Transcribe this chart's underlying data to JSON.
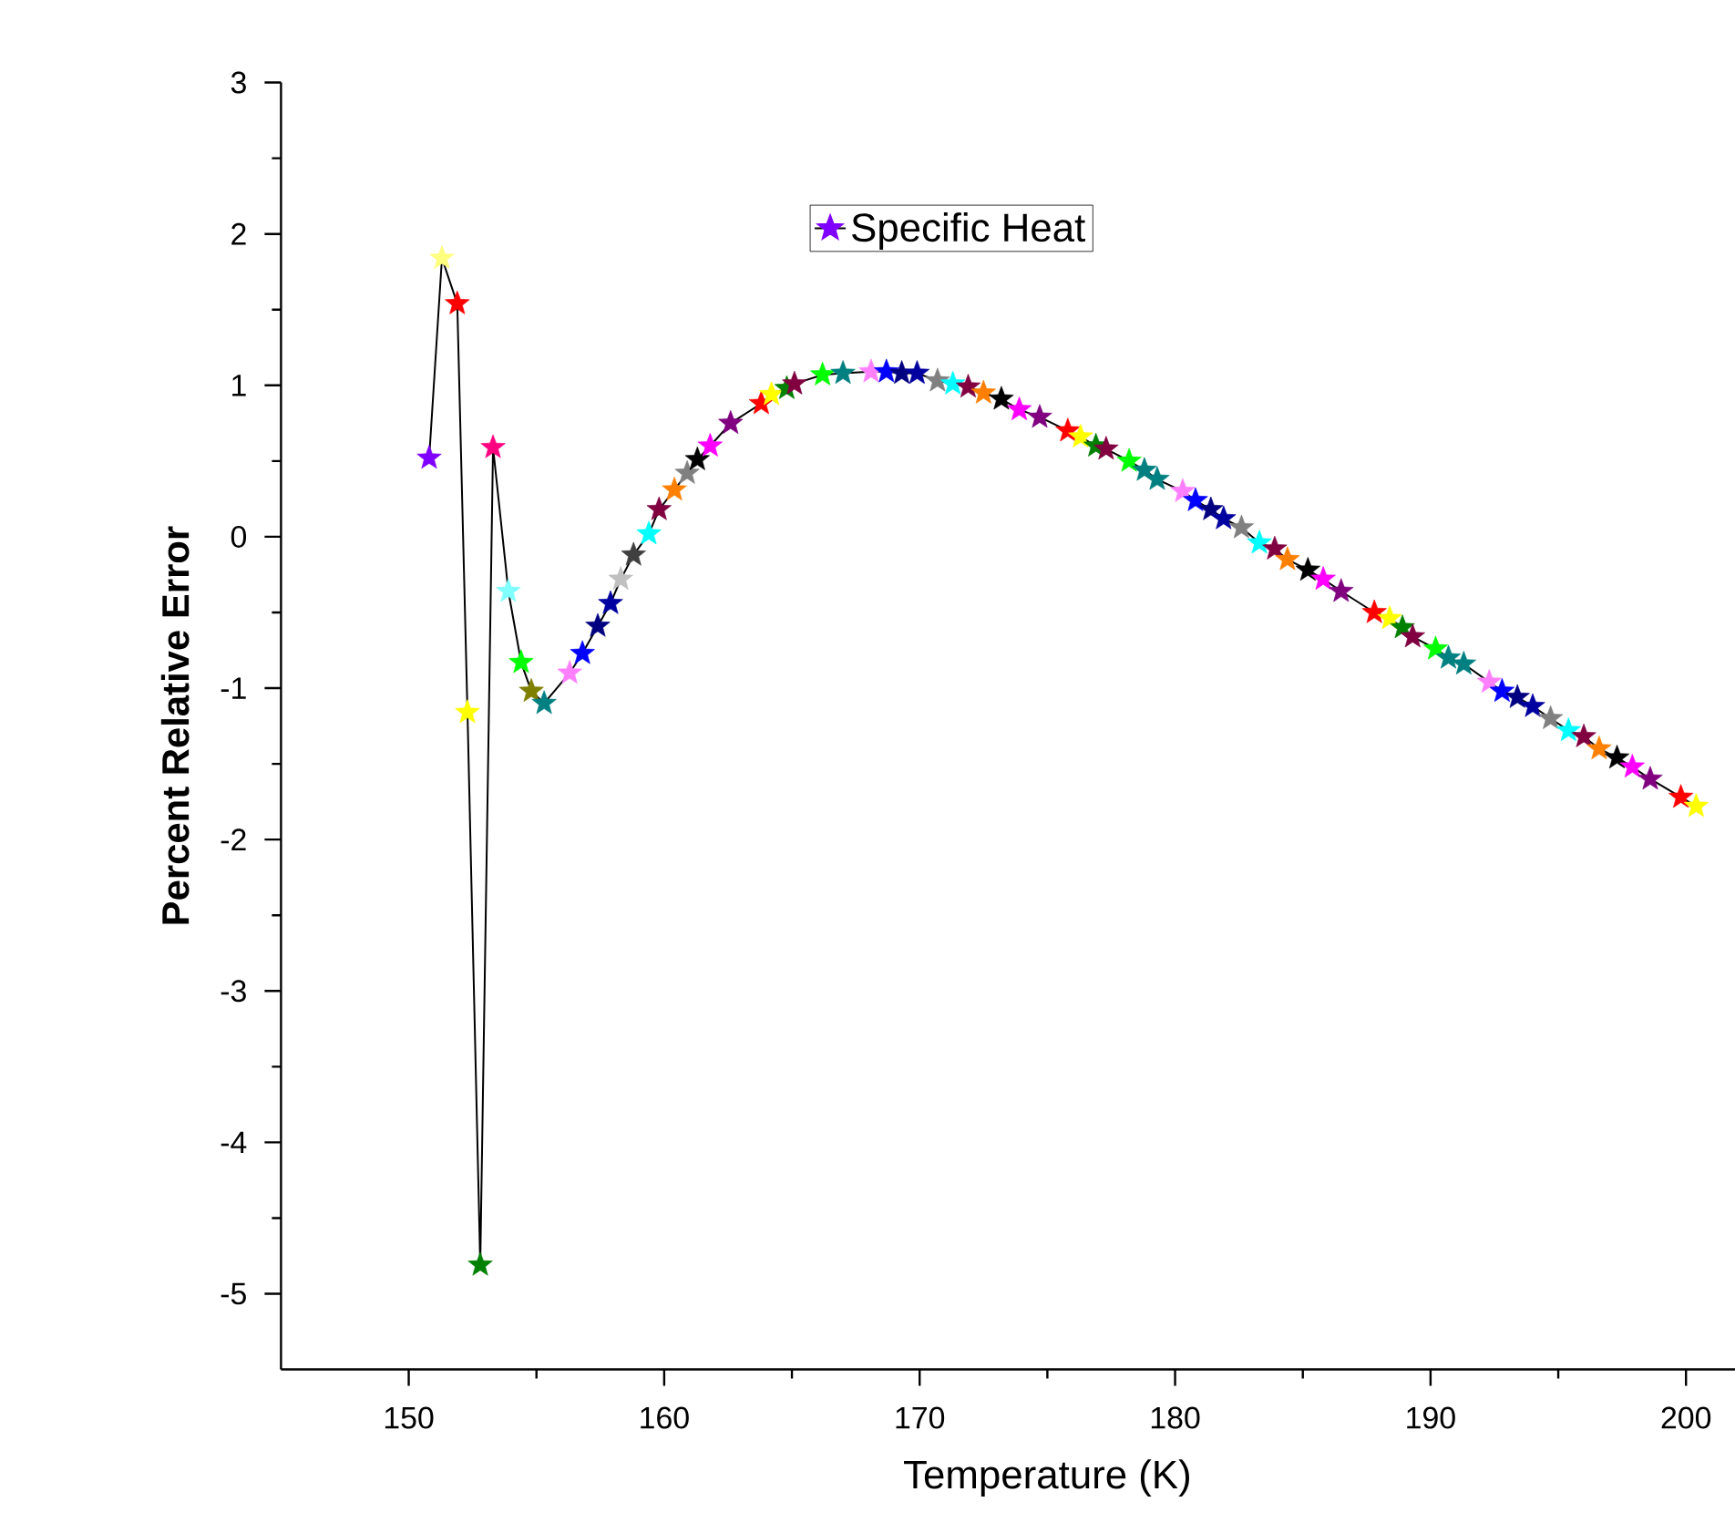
{
  "chart_data": {
    "type": "line",
    "xlabel": "Temperature (K)",
    "ylabel": "Percent Relative Error",
    "xlim": [
      145,
      205
    ],
    "ylim": [
      -5.5,
      3
    ],
    "xticks": [
      150,
      160,
      170,
      180,
      190,
      200
    ],
    "yticks": [
      -5,
      -4,
      -3,
      -2,
      -1,
      0,
      1,
      2,
      3
    ],
    "marker": "star",
    "line_style": "solid",
    "legend": "top",
    "series": [
      {
        "name": "Specific Heat",
        "color": "#000000",
        "x": [
          150.8,
          151.3,
          151.9,
          152.3,
          152.8,
          153.3,
          153.9,
          154.4,
          154.8,
          155.3,
          156.3,
          156.8,
          157.4,
          157.9,
          158.3,
          158.8,
          159.4,
          159.8,
          160.4,
          160.9,
          161.3,
          161.8,
          162.6,
          163.8,
          164.2,
          164.8,
          165.1,
          166.2,
          167.0,
          168.1,
          168.7,
          169.3,
          169.9,
          170.7,
          171.3,
          171.9,
          172.5,
          173.2,
          173.9,
          174.7,
          175.8,
          176.3,
          176.9,
          177.3,
          178.2,
          178.8,
          179.3,
          180.3,
          180.8,
          181.4,
          181.9,
          182.6,
          183.3,
          183.9,
          184.4,
          185.2,
          185.8,
          186.5,
          187.8,
          188.4,
          188.9,
          189.3,
          190.2,
          190.7,
          191.3,
          192.3,
          192.8,
          193.4,
          194.0,
          194.7,
          195.4,
          196.0,
          196.6,
          197.3,
          197.9,
          198.6,
          199.8,
          200.4
        ],
        "values": [
          0.52,
          1.84,
          1.54,
          -1.16,
          -4.81,
          0.59,
          -0.36,
          -0.83,
          -1.02,
          -1.1,
          -0.9,
          -0.77,
          -0.59,
          -0.44,
          -0.28,
          -0.12,
          0.02,
          0.18,
          0.31,
          0.42,
          0.51,
          0.6,
          0.75,
          0.88,
          0.94,
          0.98,
          1.01,
          1.07,
          1.08,
          1.09,
          1.09,
          1.08,
          1.08,
          1.03,
          1.01,
          0.99,
          0.95,
          0.91,
          0.84,
          0.79,
          0.7,
          0.66,
          0.6,
          0.58,
          0.5,
          0.44,
          0.38,
          0.3,
          0.24,
          0.18,
          0.12,
          0.06,
          -0.04,
          -0.08,
          -0.15,
          -0.22,
          -0.28,
          -0.36,
          -0.5,
          -0.54,
          -0.6,
          -0.66,
          -0.74,
          -0.8,
          -0.84,
          -0.96,
          -1.02,
          -1.06,
          -1.12,
          -1.2,
          -1.28,
          -1.32,
          -1.4,
          -1.46,
          -1.52,
          -1.6,
          -1.72,
          -1.78
        ],
        "colors": [
          "#8000ff",
          "#ffff80",
          "#ff0000",
          "#ffff00",
          "#008000",
          "#ff0080",
          "#80ffff",
          "#00ff00",
          "#808000",
          "#008080",
          "#ff80ff",
          "#0000ff",
          "#000080",
          "#0000a0",
          "#c0c0c0",
          "#404040",
          "#00ffff",
          "#800040",
          "#ff8000",
          "#808080",
          "#000000",
          "#ff00ff",
          "#800080",
          "#ff0000",
          "#ffff00",
          "#008000",
          "#800040",
          "#00ff00",
          "#008080",
          "#ff80ff",
          "#0000ff",
          "#000080",
          "#0000a0",
          "#808080",
          "#00ffff",
          "#800040",
          "#ff8000",
          "#000000",
          "#ff00ff",
          "#800080",
          "#ff0000",
          "#ffff00",
          "#008000",
          "#800040",
          "#00ff00",
          "#008080",
          "#008080",
          "#ff80ff",
          "#0000ff",
          "#000080",
          "#0000a0",
          "#808080",
          "#00ffff",
          "#800040",
          "#ff8000",
          "#000000",
          "#ff00ff",
          "#800080",
          "#ff0000",
          "#ffff00",
          "#008000",
          "#800040",
          "#00ff00",
          "#008080",
          "#008080",
          "#ff80ff",
          "#0000ff",
          "#000080",
          "#0000a0",
          "#808080",
          "#00ffff",
          "#800040",
          "#ff8000",
          "#000000",
          "#ff00ff",
          "#800080",
          "#ff0000",
          "#ffff00"
        ]
      }
    ]
  }
}
